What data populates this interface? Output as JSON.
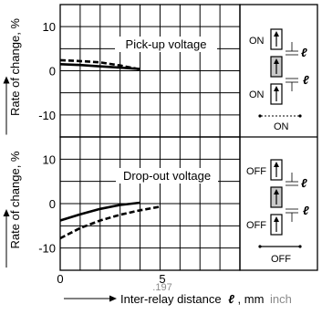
{
  "chart_data": [
    {
      "type": "line",
      "title": "Pick-up voltage",
      "ylabel": "Rate of change, %",
      "ylim": [
        -15,
        15
      ],
      "xlim": [
        0,
        9
      ],
      "yticks": [
        10,
        0,
        -10
      ],
      "grid": true,
      "series": [
        {
          "style": "solid",
          "x": [
            0,
            1,
            2,
            3,
            4
          ],
          "y": [
            1.5,
            1.3,
            1.0,
            0.7,
            0.4
          ]
        },
        {
          "style": "dashed",
          "x": [
            0,
            1,
            2,
            3,
            4
          ],
          "y": [
            2.4,
            2.2,
            1.9,
            1.2,
            0.3
          ]
        }
      ]
    },
    {
      "type": "line",
      "title": "Drop-out voltage",
      "ylabel": "Rate of change, %",
      "ylim": [
        -15,
        15
      ],
      "xlim": [
        0,
        9
      ],
      "yticks": [
        10,
        0,
        -10
      ],
      "xticks": [
        "0",
        "5"
      ],
      "xtick_secondary": ".197",
      "xlabel_text": "Inter-relay distance",
      "xlabel_symbol": "ℓ",
      "xlabel_unit": ", mm",
      "xlabel_unit_alt": "inch",
      "grid": true,
      "series": [
        {
          "style": "solid",
          "x": [
            0,
            1,
            2,
            3,
            4
          ],
          "y": [
            -3.8,
            -2.4,
            -1.2,
            -0.3,
            0.2
          ]
        },
        {
          "style": "dashed",
          "x": [
            0,
            1,
            2,
            3,
            4,
            5
          ],
          "y": [
            -7.8,
            -5.5,
            -3.8,
            -2.5,
            -1.5,
            -0.7
          ]
        }
      ]
    }
  ],
  "legend": {
    "top": {
      "state1": "ON",
      "state2": "ON",
      "bottom": "ON",
      "symbol": "ℓ"
    },
    "bottom": {
      "state1": "OFF",
      "state2": "OFF",
      "bottom": "OFF",
      "symbol": "ℓ"
    }
  }
}
